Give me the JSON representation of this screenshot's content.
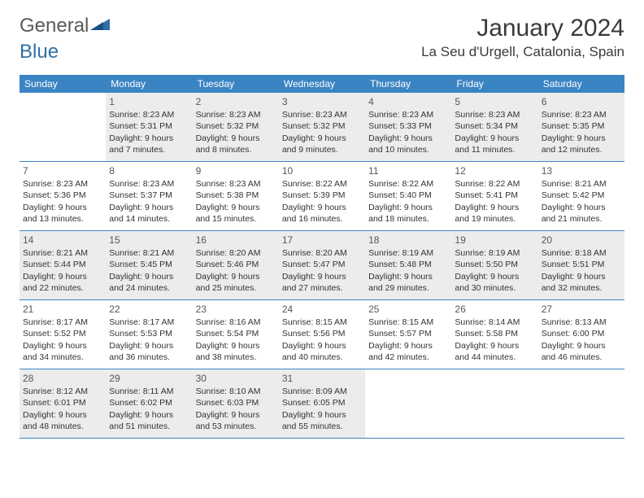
{
  "logo": {
    "text1": "General",
    "text2": "Blue",
    "color1": "#6a6a6a",
    "color2": "#2f6fa8"
  },
  "header": {
    "month_title": "January 2024",
    "location": "La Seu d'Urgell, Catalonia, Spain"
  },
  "colors": {
    "header_bg": "#3b84c4",
    "header_text": "#ffffff",
    "shaded_bg": "#ececec",
    "rule": "#3b84c4"
  },
  "day_names": [
    "Sunday",
    "Monday",
    "Tuesday",
    "Wednesday",
    "Thursday",
    "Friday",
    "Saturday"
  ],
  "weeks": [
    [
      {
        "n": "",
        "l1": "",
        "l2": "",
        "l3": "",
        "l4": "",
        "shaded": false
      },
      {
        "n": "1",
        "l1": "Sunrise: 8:23 AM",
        "l2": "Sunset: 5:31 PM",
        "l3": "Daylight: 9 hours",
        "l4": "and 7 minutes.",
        "shaded": true
      },
      {
        "n": "2",
        "l1": "Sunrise: 8:23 AM",
        "l2": "Sunset: 5:32 PM",
        "l3": "Daylight: 9 hours",
        "l4": "and 8 minutes.",
        "shaded": true
      },
      {
        "n": "3",
        "l1": "Sunrise: 8:23 AM",
        "l2": "Sunset: 5:32 PM",
        "l3": "Daylight: 9 hours",
        "l4": "and 9 minutes.",
        "shaded": true
      },
      {
        "n": "4",
        "l1": "Sunrise: 8:23 AM",
        "l2": "Sunset: 5:33 PM",
        "l3": "Daylight: 9 hours",
        "l4": "and 10 minutes.",
        "shaded": true
      },
      {
        "n": "5",
        "l1": "Sunrise: 8:23 AM",
        "l2": "Sunset: 5:34 PM",
        "l3": "Daylight: 9 hours",
        "l4": "and 11 minutes.",
        "shaded": true
      },
      {
        "n": "6",
        "l1": "Sunrise: 8:23 AM",
        "l2": "Sunset: 5:35 PM",
        "l3": "Daylight: 9 hours",
        "l4": "and 12 minutes.",
        "shaded": true
      }
    ],
    [
      {
        "n": "7",
        "l1": "Sunrise: 8:23 AM",
        "l2": "Sunset: 5:36 PM",
        "l3": "Daylight: 9 hours",
        "l4": "and 13 minutes.",
        "shaded": false
      },
      {
        "n": "8",
        "l1": "Sunrise: 8:23 AM",
        "l2": "Sunset: 5:37 PM",
        "l3": "Daylight: 9 hours",
        "l4": "and 14 minutes.",
        "shaded": false
      },
      {
        "n": "9",
        "l1": "Sunrise: 8:23 AM",
        "l2": "Sunset: 5:38 PM",
        "l3": "Daylight: 9 hours",
        "l4": "and 15 minutes.",
        "shaded": false
      },
      {
        "n": "10",
        "l1": "Sunrise: 8:22 AM",
        "l2": "Sunset: 5:39 PM",
        "l3": "Daylight: 9 hours",
        "l4": "and 16 minutes.",
        "shaded": false
      },
      {
        "n": "11",
        "l1": "Sunrise: 8:22 AM",
        "l2": "Sunset: 5:40 PM",
        "l3": "Daylight: 9 hours",
        "l4": "and 18 minutes.",
        "shaded": false
      },
      {
        "n": "12",
        "l1": "Sunrise: 8:22 AM",
        "l2": "Sunset: 5:41 PM",
        "l3": "Daylight: 9 hours",
        "l4": "and 19 minutes.",
        "shaded": false
      },
      {
        "n": "13",
        "l1": "Sunrise: 8:21 AM",
        "l2": "Sunset: 5:42 PM",
        "l3": "Daylight: 9 hours",
        "l4": "and 21 minutes.",
        "shaded": false
      }
    ],
    [
      {
        "n": "14",
        "l1": "Sunrise: 8:21 AM",
        "l2": "Sunset: 5:44 PM",
        "l3": "Daylight: 9 hours",
        "l4": "and 22 minutes.",
        "shaded": true
      },
      {
        "n": "15",
        "l1": "Sunrise: 8:21 AM",
        "l2": "Sunset: 5:45 PM",
        "l3": "Daylight: 9 hours",
        "l4": "and 24 minutes.",
        "shaded": true
      },
      {
        "n": "16",
        "l1": "Sunrise: 8:20 AM",
        "l2": "Sunset: 5:46 PM",
        "l3": "Daylight: 9 hours",
        "l4": "and 25 minutes.",
        "shaded": true
      },
      {
        "n": "17",
        "l1": "Sunrise: 8:20 AM",
        "l2": "Sunset: 5:47 PM",
        "l3": "Daylight: 9 hours",
        "l4": "and 27 minutes.",
        "shaded": true
      },
      {
        "n": "18",
        "l1": "Sunrise: 8:19 AM",
        "l2": "Sunset: 5:48 PM",
        "l3": "Daylight: 9 hours",
        "l4": "and 29 minutes.",
        "shaded": true
      },
      {
        "n": "19",
        "l1": "Sunrise: 8:19 AM",
        "l2": "Sunset: 5:50 PM",
        "l3": "Daylight: 9 hours",
        "l4": "and 30 minutes.",
        "shaded": true
      },
      {
        "n": "20",
        "l1": "Sunrise: 8:18 AM",
        "l2": "Sunset: 5:51 PM",
        "l3": "Daylight: 9 hours",
        "l4": "and 32 minutes.",
        "shaded": true
      }
    ],
    [
      {
        "n": "21",
        "l1": "Sunrise: 8:17 AM",
        "l2": "Sunset: 5:52 PM",
        "l3": "Daylight: 9 hours",
        "l4": "and 34 minutes.",
        "shaded": false
      },
      {
        "n": "22",
        "l1": "Sunrise: 8:17 AM",
        "l2": "Sunset: 5:53 PM",
        "l3": "Daylight: 9 hours",
        "l4": "and 36 minutes.",
        "shaded": false
      },
      {
        "n": "23",
        "l1": "Sunrise: 8:16 AM",
        "l2": "Sunset: 5:54 PM",
        "l3": "Daylight: 9 hours",
        "l4": "and 38 minutes.",
        "shaded": false
      },
      {
        "n": "24",
        "l1": "Sunrise: 8:15 AM",
        "l2": "Sunset: 5:56 PM",
        "l3": "Daylight: 9 hours",
        "l4": "and 40 minutes.",
        "shaded": false
      },
      {
        "n": "25",
        "l1": "Sunrise: 8:15 AM",
        "l2": "Sunset: 5:57 PM",
        "l3": "Daylight: 9 hours",
        "l4": "and 42 minutes.",
        "shaded": false
      },
      {
        "n": "26",
        "l1": "Sunrise: 8:14 AM",
        "l2": "Sunset: 5:58 PM",
        "l3": "Daylight: 9 hours",
        "l4": "and 44 minutes.",
        "shaded": false
      },
      {
        "n": "27",
        "l1": "Sunrise: 8:13 AM",
        "l2": "Sunset: 6:00 PM",
        "l3": "Daylight: 9 hours",
        "l4": "and 46 minutes.",
        "shaded": false
      }
    ],
    [
      {
        "n": "28",
        "l1": "Sunrise: 8:12 AM",
        "l2": "Sunset: 6:01 PM",
        "l3": "Daylight: 9 hours",
        "l4": "and 48 minutes.",
        "shaded": true
      },
      {
        "n": "29",
        "l1": "Sunrise: 8:11 AM",
        "l2": "Sunset: 6:02 PM",
        "l3": "Daylight: 9 hours",
        "l4": "and 51 minutes.",
        "shaded": true
      },
      {
        "n": "30",
        "l1": "Sunrise: 8:10 AM",
        "l2": "Sunset: 6:03 PM",
        "l3": "Daylight: 9 hours",
        "l4": "and 53 minutes.",
        "shaded": true
      },
      {
        "n": "31",
        "l1": "Sunrise: 8:09 AM",
        "l2": "Sunset: 6:05 PM",
        "l3": "Daylight: 9 hours",
        "l4": "and 55 minutes.",
        "shaded": true
      },
      {
        "n": "",
        "l1": "",
        "l2": "",
        "l3": "",
        "l4": "",
        "shaded": false
      },
      {
        "n": "",
        "l1": "",
        "l2": "",
        "l3": "",
        "l4": "",
        "shaded": false
      },
      {
        "n": "",
        "l1": "",
        "l2": "",
        "l3": "",
        "l4": "",
        "shaded": false
      }
    ]
  ]
}
